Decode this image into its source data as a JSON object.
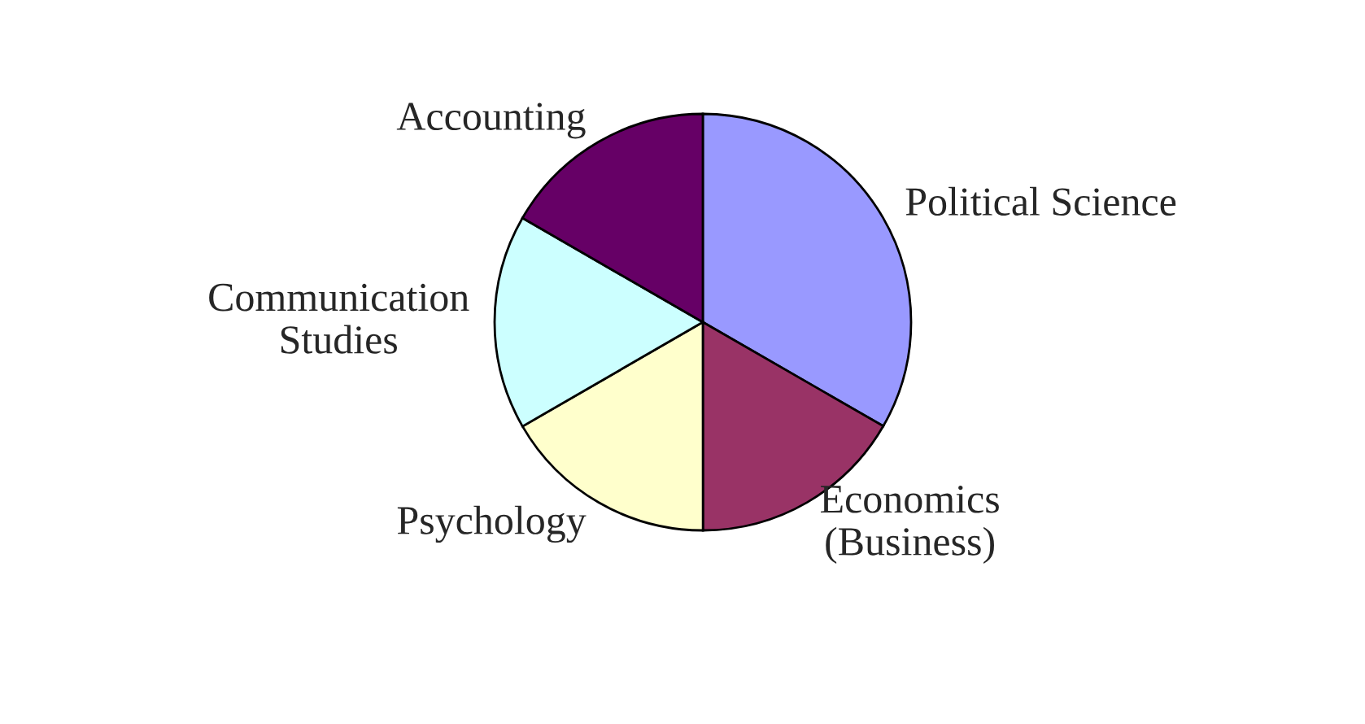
{
  "chart_data": {
    "type": "pie",
    "categories": [
      "Political Science",
      "Economics\n(Business)",
      "Psychology",
      "Communication\nStudies",
      "Accounting"
    ],
    "values": [
      33.32,
      16.67,
      16.67,
      16.67,
      16.67
    ],
    "colors": [
      "#9999ff",
      "#993366",
      "#ffffcc",
      "#ccffff",
      "#660066"
    ]
  }
}
